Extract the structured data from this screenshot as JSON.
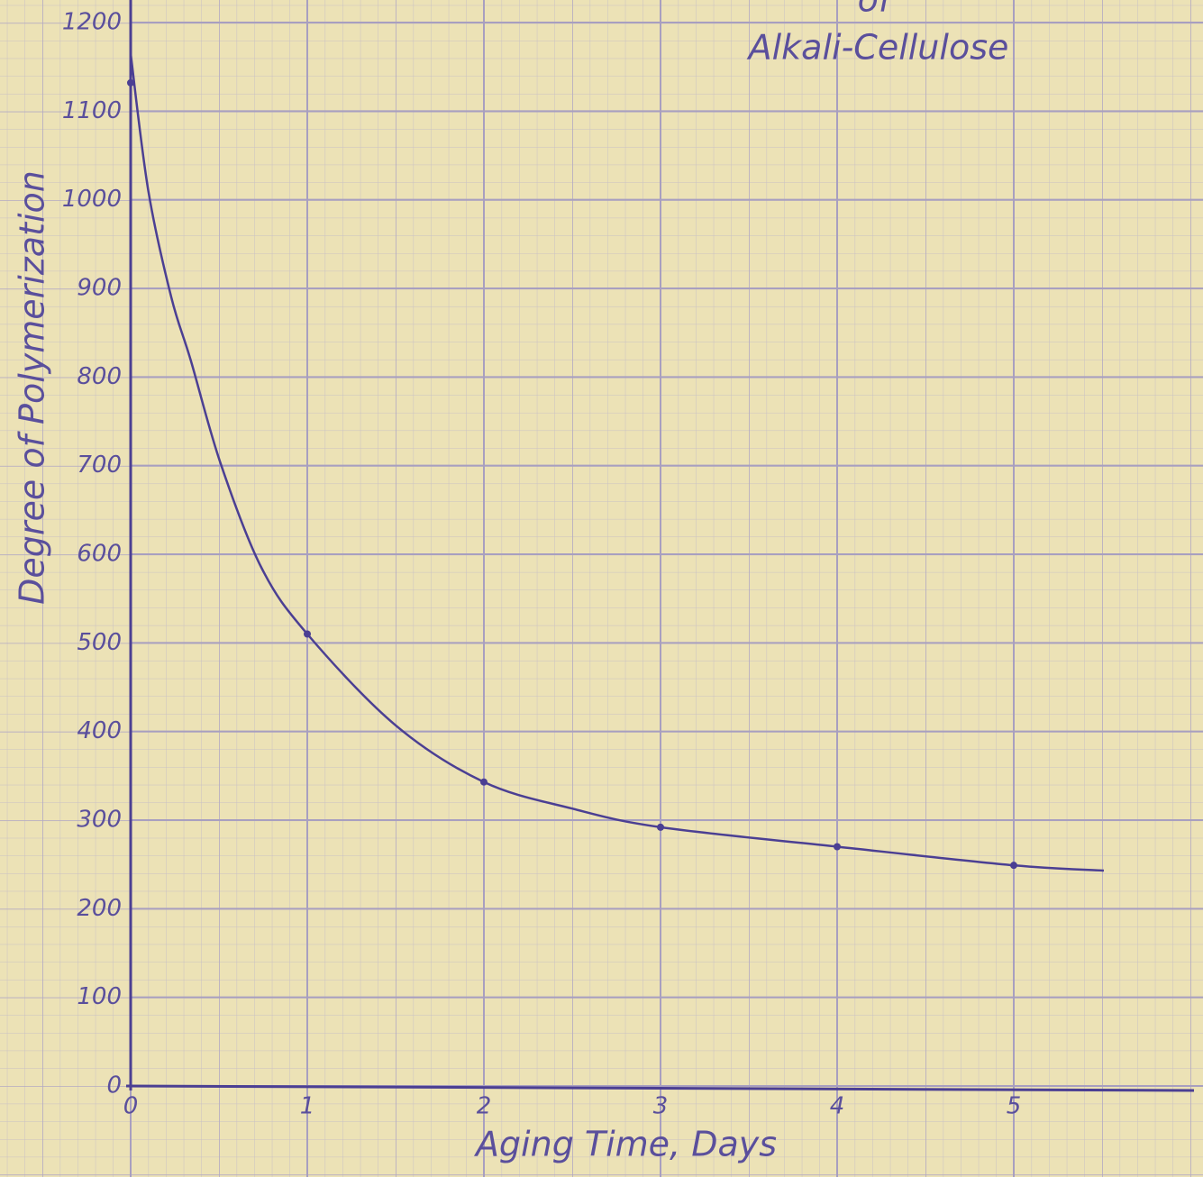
{
  "chart_data": {
    "type": "line",
    "title_lines": [
      "of",
      "Alkali-Cellulose"
    ],
    "xlabel": "Aging Time, Days",
    "ylabel": "Degree of Polymerization",
    "xlim": [
      0,
      6
    ],
    "ylim": [
      0,
      1200
    ],
    "xticks": [
      0,
      1,
      2,
      3,
      4,
      5
    ],
    "yticks": [
      0,
      100,
      200,
      300,
      400,
      500,
      600,
      700,
      800,
      900,
      1000,
      1100,
      1200
    ],
    "grid": true,
    "series": [
      {
        "color": "#4b3f93",
        "marker": false,
        "x": [
          0,
          0.1,
          0.23,
          0.34,
          0.51,
          0.74,
          1,
          1.5,
          2,
          2.5,
          3,
          4,
          5,
          5.51
        ],
        "values": [
          1165,
          1010,
          890,
          819,
          702,
          585,
          510,
          407,
          343,
          313,
          292,
          270,
          249,
          243
        ]
      },
      {
        "color": "#4b3f93",
        "marker": true,
        "x": [
          0,
          1,
          2,
          3,
          4,
          5
        ],
        "values": [
          1132,
          510,
          343,
          292,
          270,
          249
        ]
      }
    ]
  }
}
